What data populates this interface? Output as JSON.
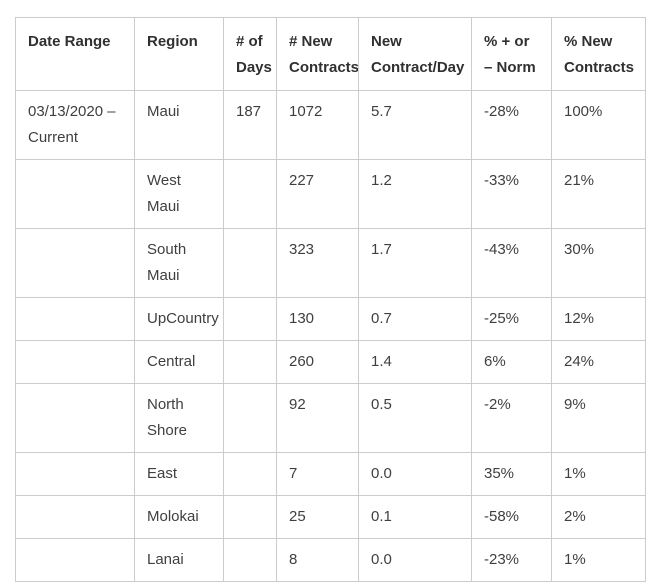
{
  "chart_data": {
    "type": "table",
    "title": "",
    "columns": [
      "Date Range",
      "Region",
      "# of Days",
      "# New Contracts",
      "New Contract/Day",
      "% + or – Norm",
      "% New Contracts"
    ],
    "rows": [
      {
        "cells": [
          "03/13/2020 – Current",
          "Maui",
          "187",
          "1072",
          "5.7",
          "-28%",
          "100%"
        ]
      },
      {
        "cells": [
          "",
          "West Maui",
          "",
          "227",
          "1.2",
          "-33%",
          "21%"
        ]
      },
      {
        "cells": [
          "",
          "South Maui",
          "",
          "323",
          "1.7",
          "-43%",
          "30%"
        ]
      },
      {
        "cells": [
          "",
          "UpCountry",
          "",
          "130",
          "0.7",
          "-25%",
          "12%"
        ]
      },
      {
        "cells": [
          "",
          "Central",
          "",
          "260",
          "1.4",
          "6%",
          "24%"
        ]
      },
      {
        "cells": [
          "",
          "North Shore",
          "",
          "92",
          "0.5",
          "-2%",
          "9%"
        ]
      },
      {
        "cells": [
          "",
          "East",
          "",
          "7",
          "0.0",
          "35%",
          "1%"
        ]
      },
      {
        "cells": [
          "",
          "Molokai",
          "",
          "25",
          "0.1",
          "-58%",
          "2%"
        ]
      },
      {
        "cells": [
          "",
          "Lanai",
          "",
          "8",
          "0.0",
          "-23%",
          "1%"
        ]
      }
    ]
  },
  "colors": {
    "border": "#cccccc",
    "header_text": "#303030",
    "body_text": "#3f3f3f",
    "background": "#ffffff"
  }
}
